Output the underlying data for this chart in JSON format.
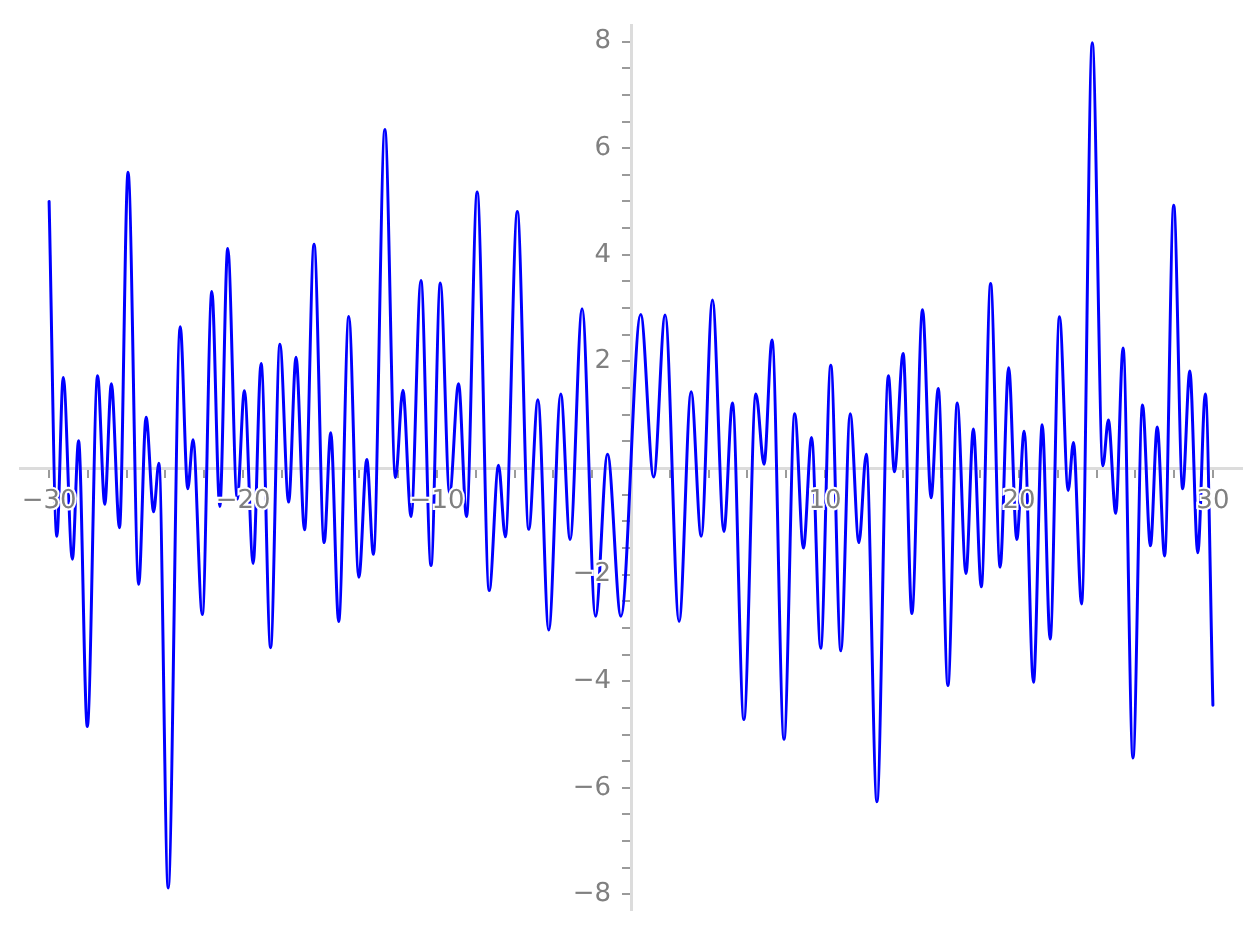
{
  "chart_data": {
    "type": "line",
    "color": "#0000ff",
    "marker": "none",
    "line_style": "solid",
    "x": [
      -30,
      -29.6,
      -29.27,
      -28.8,
      -28.48,
      -28.03,
      -27.5,
      -27.13,
      -26.79,
      -26.37,
      -25.93,
      -25.38,
      -25.0,
      -24.61,
      -24.34,
      -23.86,
      -23.24,
      -22.85,
      -22.58,
      -22.1,
      -21.61,
      -21.2,
      -20.79,
      -20.3,
      -19.93,
      -19.48,
      -19.07,
      -18.58,
      -18.1,
      -17.65,
      -17.27,
      -16.83,
      -16.34,
      -15.82,
      -15.48,
      -15.07,
      -14.55,
      -14.03,
      -13.62,
      -13.28,
      -12.69,
      -12.14,
      -11.76,
      -11.34,
      -10.83,
      -10.31,
      -9.83,
      -9.35,
      -8.89,
      -8.48,
      -7.93,
      -7.31,
      -6.83,
      -6.48,
      -5.86,
      -5.27,
      -4.8,
      -4.24,
      -3.62,
      -3.14,
      -2.52,
      -1.83,
      -1.21,
      -0.52,
      0.5,
      1.17,
      1.76,
      2.48,
      3.1,
      3.62,
      4.2,
      4.79,
      5.23,
      5.82,
      6.44,
      6.86,
      7.27,
      7.89,
      8.44,
      8.89,
      9.31,
      9.78,
      10.3,
      10.82,
      11.3,
      11.75,
      12.13,
      12.68,
      13.27,
      13.58,
      14.03,
      14.48,
      15.03,
      15.47,
      15.84,
      16.34,
      16.82,
      17.27,
      17.65,
      18.06,
      18.54,
      19.03,
      19.47,
      19.89,
      20.27,
      20.75,
      21.2,
      21.61,
      22.09,
      22.54,
      22.81,
      23.23,
      23.78,
      24.33,
      24.61,
      24.99,
      25.37,
      25.88,
      26.37,
      26.78,
      27.13,
      27.51,
      27.98,
      28.44,
      28.81,
      29.22,
      29.61,
      30
    ],
    "values": [
      5.0,
      -1.28,
      1.7,
      -1.71,
      0.51,
      -4.85,
      1.73,
      -0.68,
      1.58,
      -1.12,
      5.55,
      -2.18,
      0.95,
      -0.82,
      0.09,
      -7.88,
      2.65,
      -0.39,
      0.53,
      -2.75,
      3.31,
      -0.72,
      4.12,
      -0.58,
      1.45,
      -1.79,
      1.96,
      -3.37,
      2.32,
      -0.64,
      2.08,
      -1.16,
      4.2,
      -1.4,
      0.66,
      -2.88,
      2.84,
      -2.05,
      0.16,
      -1.62,
      6.35,
      -0.18,
      1.46,
      -0.91,
      3.52,
      -1.83,
      3.47,
      -0.48,
      1.58,
      -0.91,
      5.18,
      -2.3,
      0.05,
      -1.29,
      4.81,
      -1.15,
      1.28,
      -3.04,
      1.39,
      -1.34,
      2.99,
      -2.78,
      0.26,
      -2.78,
      2.88,
      -0.17,
      2.87,
      -2.88,
      1.43,
      -1.28,
      3.15,
      -1.19,
      1.22,
      -4.72,
      1.39,
      0.07,
      2.4,
      -5.09,
      1.02,
      -1.5,
      0.57,
      -3.38,
      1.93,
      -3.43,
      1.02,
      -1.4,
      0.26,
      -6.26,
      1.73,
      -0.07,
      2.15,
      -2.73,
      2.97,
      -0.56,
      1.49,
      -4.08,
      1.22,
      -1.98,
      0.73,
      -2.23,
      3.46,
      -1.86,
      1.88,
      -1.34,
      0.69,
      -4.02,
      0.81,
      -3.21,
      2.84,
      -0.42,
      0.48,
      -2.55,
      7.98,
      0.04,
      0.9,
      -0.85,
      2.25,
      -5.44,
      1.18,
      -1.46,
      0.77,
      -1.65,
      4.93,
      -0.39,
      1.82,
      -1.59,
      1.39,
      -4.45
    ],
    "xlim": [
      -31.5,
      31.5
    ],
    "ylim": [
      -8.3,
      8.3
    ],
    "xticks": [
      {
        "value": -30,
        "label": "−30"
      },
      {
        "value": -28,
        "label": null
      },
      {
        "value": -26,
        "label": null
      },
      {
        "value": -24,
        "label": null
      },
      {
        "value": -22,
        "label": null
      },
      {
        "value": -20,
        "label": "−20"
      },
      {
        "value": -18,
        "label": null
      },
      {
        "value": -16,
        "label": null
      },
      {
        "value": -14,
        "label": null
      },
      {
        "value": -12,
        "label": null
      },
      {
        "value": -10,
        "label": "−10"
      },
      {
        "value": -8,
        "label": null
      },
      {
        "value": -6,
        "label": null
      },
      {
        "value": -4,
        "label": null
      },
      {
        "value": -2,
        "label": null
      },
      {
        "value": 2,
        "label": null
      },
      {
        "value": 4,
        "label": null
      },
      {
        "value": 6,
        "label": null
      },
      {
        "value": 8,
        "label": null
      },
      10,
      {
        "value": 12,
        "label": null
      },
      {
        "value": 14,
        "label": null
      },
      {
        "value": 16,
        "label": null
      },
      {
        "value": 18,
        "label": null
      },
      20,
      {
        "value": 22,
        "label": null
      },
      {
        "value": 24,
        "label": null
      },
      {
        "value": 26,
        "label": null
      },
      {
        "value": 28,
        "label": null
      },
      30
    ],
    "yticks": [
      {
        "value": -8,
        "label": "−8"
      },
      {
        "value": -7.5,
        "label": null
      },
      {
        "value": -7,
        "label": null
      },
      {
        "value": -6.5,
        "label": null
      },
      {
        "value": -6,
        "label": "−6"
      },
      {
        "value": -5.5,
        "label": null
      },
      {
        "value": -5,
        "label": null
      },
      {
        "value": -4.5,
        "label": null
      },
      {
        "value": -4,
        "label": "−4"
      },
      {
        "value": -3.5,
        "label": null
      },
      {
        "value": -3,
        "label": null
      },
      {
        "value": -2.5,
        "label": null
      },
      {
        "value": -2,
        "label": "−2"
      },
      {
        "value": -1.5,
        "label": null
      },
      {
        "value": -1,
        "label": null
      },
      {
        "value": -0.5,
        "label": null
      },
      {
        "value": 0.5,
        "label": null
      },
      {
        "value": 1,
        "label": null
      },
      {
        "value": 1.5,
        "label": null
      },
      2,
      {
        "value": 2.5,
        "label": null
      },
      {
        "value": 3,
        "label": null
      },
      {
        "value": 3.5,
        "label": null
      },
      4,
      {
        "value": 4.5,
        "label": null
      },
      {
        "value": 5,
        "label": null
      },
      {
        "value": 5.5,
        "label": null
      },
      6,
      {
        "value": 6.5,
        "label": null
      },
      {
        "value": 7,
        "label": null
      },
      {
        "value": 7.5,
        "label": null
      },
      8
    ]
  }
}
